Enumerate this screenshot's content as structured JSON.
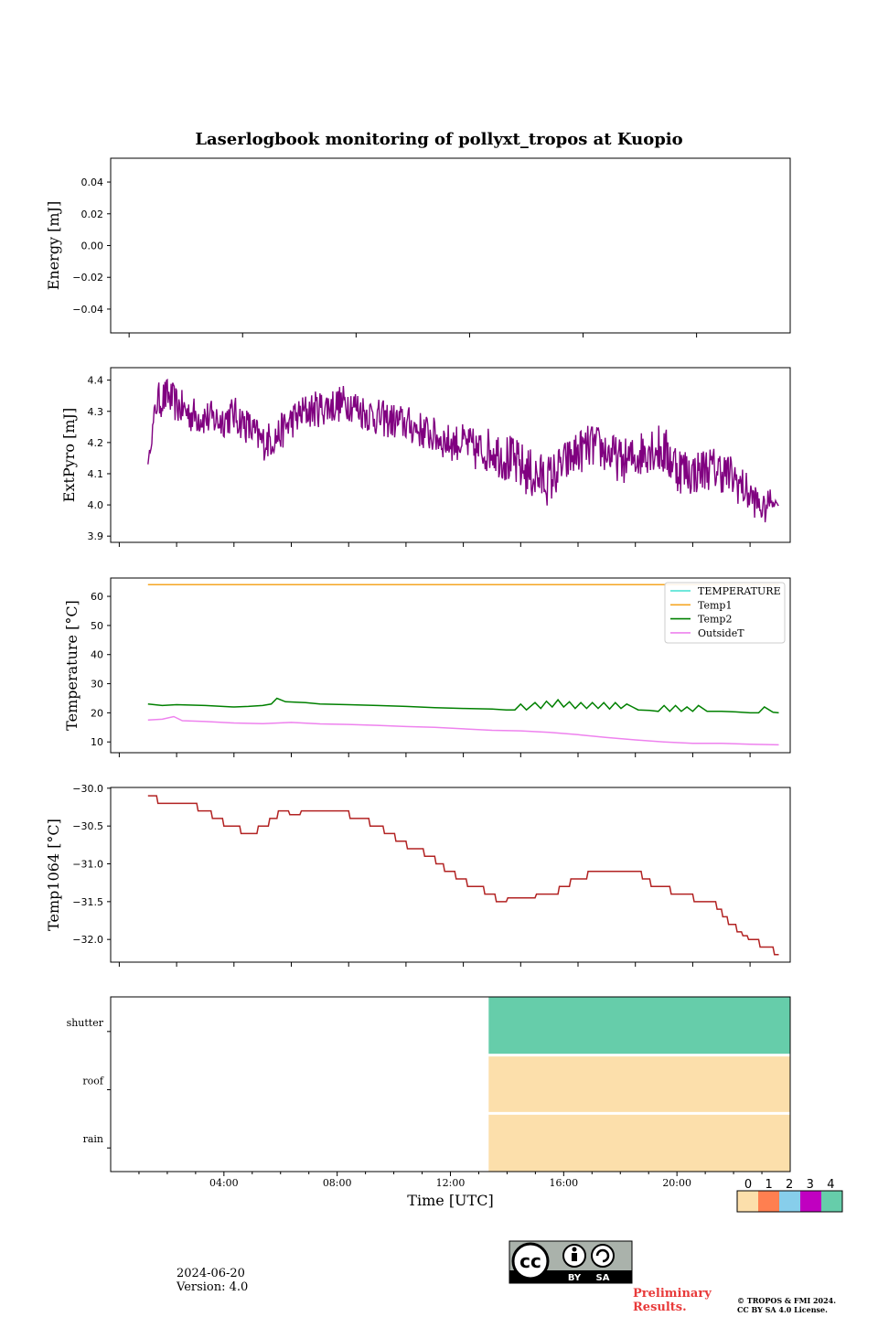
{
  "title": "Laserlogbook monitoring of pollyxt_tropos at Kuopio",
  "date": "2024-06-20",
  "version": "Version: 4.0",
  "preliminary": [
    "Preliminary",
    "Results."
  ],
  "copyright": [
    "© TROPOS & FMI 2024.",
    "CC BY SA 4.0 License."
  ],
  "license_badge": {
    "labels": [
      "BY",
      "SA"
    ],
    "text": "cc"
  },
  "colors": {
    "energy": "#1f77b4",
    "extpyro": "#800080",
    "temperature": "#40e0d0",
    "temp1": "#f5a623",
    "temp2": "#008000",
    "outsideT": "#ee82ee",
    "temp1064": "#b22222"
  },
  "chart_data": [
    {
      "type": "line",
      "ylabel": "Energy [mJ]",
      "ylim": [
        -0.055,
        0.055
      ],
      "yticks": [
        0.04,
        0.02,
        0.0,
        -0.02,
        -0.04
      ],
      "ytick_labels": [
        "0.04",
        "0.02",
        "0.00",
        "−0.02",
        "−0.04"
      ],
      "series": []
    },
    {
      "type": "line",
      "ylabel": "ExtPyro [mJ]",
      "ylim": [
        3.88,
        4.44
      ],
      "yticks": [
        3.9,
        4.0,
        4.1,
        4.2,
        4.3,
        4.4
      ],
      "ytick_labels": [
        "3.9",
        "4.0",
        "4.1",
        "4.2",
        "4.3",
        "4.4"
      ],
      "x_hours": [
        1.0,
        1.3,
        1.7,
        2.0,
        2.5,
        3.0,
        3.5,
        4.0,
        4.5,
        5.0,
        5.5,
        6.0,
        6.5,
        7.0,
        7.5,
        8.0,
        8.5,
        9.0,
        9.5,
        10.0,
        10.5,
        11.0,
        11.5,
        12.0,
        12.5,
        13.0,
        13.5,
        14.0,
        14.5,
        15.0,
        15.5,
        16.0,
        16.5,
        17.0,
        17.5,
        18.0,
        18.5,
        19.0,
        19.5,
        20.0,
        20.5,
        21.0,
        21.5,
        22.0,
        22.5,
        22.7,
        23.0
      ],
      "mean": [
        4.13,
        4.33,
        4.35,
        4.32,
        4.29,
        4.28,
        4.27,
        4.29,
        4.25,
        4.2,
        4.22,
        4.27,
        4.3,
        4.31,
        4.32,
        4.33,
        4.3,
        4.28,
        4.27,
        4.26,
        4.24,
        4.22,
        4.2,
        4.2,
        4.17,
        4.18,
        4.15,
        4.12,
        4.09,
        4.08,
        4.13,
        4.17,
        4.19,
        4.17,
        4.14,
        4.15,
        4.19,
        4.17,
        4.12,
        4.1,
        4.12,
        4.11,
        4.08,
        4.03,
        3.98,
        4.02,
        4.0
      ],
      "amp": [
        0.0,
        0.05,
        0.05,
        0.05,
        0.05,
        0.05,
        0.05,
        0.05,
        0.05,
        0.05,
        0.05,
        0.05,
        0.05,
        0.05,
        0.05,
        0.05,
        0.05,
        0.05,
        0.05,
        0.05,
        0.05,
        0.05,
        0.05,
        0.05,
        0.06,
        0.06,
        0.07,
        0.07,
        0.07,
        0.07,
        0.06,
        0.06,
        0.06,
        0.06,
        0.06,
        0.06,
        0.07,
        0.07,
        0.07,
        0.06,
        0.06,
        0.06,
        0.06,
        0.05,
        0.04,
        0.03,
        0.0
      ]
    },
    {
      "type": "line",
      "ylabel": "Temperature [°C]",
      "ylim": [
        6.3,
        66.3
      ],
      "yticks": [
        10,
        20,
        30,
        40,
        50,
        60
      ],
      "ytick_labels": [
        "10",
        "20",
        "30",
        "40",
        "50",
        "60"
      ],
      "legend": {
        "location": "upper right",
        "entries": [
          "TEMPERATURE",
          "Temp1",
          "Temp2",
          "OutsideT"
        ]
      },
      "series": [
        {
          "name": "TEMPERATURE",
          "x": [],
          "y": []
        },
        {
          "name": "Temp1",
          "x": [
            1.0,
            23.0
          ],
          "y": [
            64,
            64
          ]
        },
        {
          "name": "Temp2",
          "x": [
            1.0,
            1.5,
            2.0,
            3.0,
            4.0,
            4.5,
            5.0,
            5.3,
            5.5,
            5.8,
            6.5,
            7.0,
            8.0,
            9.0,
            10.0,
            11.0,
            12.0,
            13.0,
            13.5,
            13.8,
            14.0,
            14.2,
            14.5,
            14.7,
            14.9,
            15.1,
            15.3,
            15.5,
            15.7,
            15.9,
            16.1,
            16.3,
            16.5,
            16.7,
            16.9,
            17.1,
            17.3,
            17.5,
            17.7,
            17.9,
            18.1,
            18.5,
            18.8,
            19.0,
            19.2,
            19.4,
            19.6,
            19.8,
            20.0,
            20.2,
            20.5,
            21.0,
            21.5,
            22.0,
            22.3,
            22.5,
            22.8,
            23.0
          ],
          "y": [
            23,
            22.5,
            22.8,
            22.5,
            22,
            22.2,
            22.5,
            23,
            25,
            23.8,
            23.5,
            23,
            22.8,
            22.5,
            22.2,
            21.8,
            21.5,
            21.3,
            21,
            21,
            23,
            21,
            23.5,
            21.5,
            24,
            22,
            24.5,
            22,
            23.8,
            21.5,
            23.5,
            21.5,
            23.5,
            21.5,
            23.5,
            21.3,
            23.5,
            21.5,
            23,
            22,
            21,
            20.8,
            20.5,
            22.5,
            20.5,
            22.5,
            20.5,
            22,
            20.5,
            22.5,
            20.5,
            20.5,
            20.3,
            20,
            20,
            22,
            20.2,
            20
          ]
        },
        {
          "name": "OutsideT",
          "x": [
            1.0,
            1.5,
            1.9,
            2.2,
            3.0,
            4.0,
            5.0,
            6.0,
            7.0,
            8.0,
            9.0,
            10.0,
            11.0,
            12.0,
            13.0,
            14.0,
            15.0,
            16.0,
            17.0,
            18.0,
            19.0,
            20.0,
            21.0,
            22.0,
            23.0
          ],
          "y": [
            17.5,
            17.8,
            18.7,
            17.3,
            17,
            16.5,
            16.3,
            16.7,
            16.2,
            16,
            15.7,
            15.3,
            15,
            14.5,
            14,
            13.8,
            13.3,
            12.5,
            11.5,
            10.7,
            10,
            9.5,
            9.5,
            9.2,
            9
          ]
        }
      ]
    },
    {
      "type": "line",
      "ylabel": "Temp1064 [°C]",
      "ylim": [
        -32.3,
        -29.99
      ],
      "yticks": [
        -30.0,
        -30.5,
        -31.0,
        -31.5,
        -32.0
      ],
      "ytick_labels": [
        "−30.0",
        "−30.5",
        "−31.0",
        "−31.5",
        "−32.0"
      ],
      "x": [
        1.0,
        1.3,
        1.35,
        1.5,
        1.55,
        2.7,
        2.75,
        3.2,
        3.25,
        3.6,
        3.65,
        4.2,
        4.25,
        4.8,
        4.85,
        5.2,
        5.25,
        5.5,
        5.55,
        5.9,
        5.95,
        6.3,
        6.35,
        8.0,
        8.05,
        8.7,
        8.75,
        9.2,
        9.25,
        9.6,
        9.65,
        10.0,
        10.05,
        10.6,
        10.65,
        11.0,
        11.05,
        11.3,
        11.35,
        11.7,
        11.75,
        12.1,
        12.15,
        12.7,
        12.75,
        13.1,
        13.15,
        13.5,
        13.55,
        14.5,
        14.55,
        15.3,
        15.35,
        15.7,
        15.75,
        16.3,
        16.35,
        17.3,
        17.35,
        18.2,
        18.25,
        18.5,
        18.55,
        19.2,
        19.25,
        20.0,
        20.05,
        20.6,
        20.65,
        20.8,
        20.85,
        21.0,
        21.05,
        21.2,
        21.25,
        21.5,
        21.55,
        21.7,
        21.75,
        21.9,
        21.95,
        22.3,
        22.35,
        22.8,
        22.85,
        23.0
      ],
      "y": [
        -30.1,
        -30.1,
        -30.2,
        -30.2,
        -30.2,
        -30.2,
        -30.3,
        -30.3,
        -30.4,
        -30.4,
        -30.5,
        -30.5,
        -30.6,
        -30.6,
        -30.5,
        -30.5,
        -30.4,
        -30.4,
        -30.3,
        -30.3,
        -30.35,
        -30.35,
        -30.3,
        -30.3,
        -30.4,
        -30.4,
        -30.5,
        -30.5,
        -30.6,
        -30.6,
        -30.7,
        -30.7,
        -30.8,
        -30.8,
        -30.9,
        -30.9,
        -31.0,
        -31.0,
        -31.1,
        -31.1,
        -31.2,
        -31.2,
        -31.3,
        -31.3,
        -31.4,
        -31.4,
        -31.5,
        -31.5,
        -31.45,
        -31.45,
        -31.4,
        -31.4,
        -31.3,
        -31.3,
        -31.2,
        -31.2,
        -31.1,
        -31.1,
        -31.1,
        -31.1,
        -31.2,
        -31.2,
        -31.3,
        -31.3,
        -31.4,
        -31.4,
        -31.5,
        -31.5,
        -31.5,
        -31.5,
        -31.6,
        -31.6,
        -31.7,
        -31.7,
        -31.8,
        -31.8,
        -31.9,
        -31.9,
        -31.95,
        -31.95,
        -32.0,
        -32.0,
        -32.1,
        -32.1,
        -32.2,
        -32.2
      ]
    },
    {
      "type": "heatmap",
      "ylabel": "",
      "categories_y": [
        "shutter",
        "roof",
        "rain"
      ],
      "xlabel": "Time [UTC]",
      "xlim_hours": [
        0,
        24
      ],
      "xtick_hours": [
        4,
        8,
        12,
        16,
        20
      ],
      "xtick_labels": [
        "04:00",
        "08:00",
        "12:00",
        "16:00",
        "20:00"
      ],
      "segments": [
        {
          "row": "shutter",
          "start_hour": 13.35,
          "end_hour": 24,
          "value": 4
        },
        {
          "row": "roof",
          "start_hour": 13.35,
          "end_hour": 24,
          "value": 0
        },
        {
          "row": "rain",
          "start_hour": 13.35,
          "end_hour": 24,
          "value": 0
        }
      ],
      "colorbar": {
        "ticks": [
          "0",
          "1",
          "2",
          "3",
          "4"
        ],
        "colors": [
          "#fcdfab",
          "#ff7f50",
          "#87ceeb",
          "#c000c0",
          "#66cdaa"
        ]
      }
    }
  ]
}
